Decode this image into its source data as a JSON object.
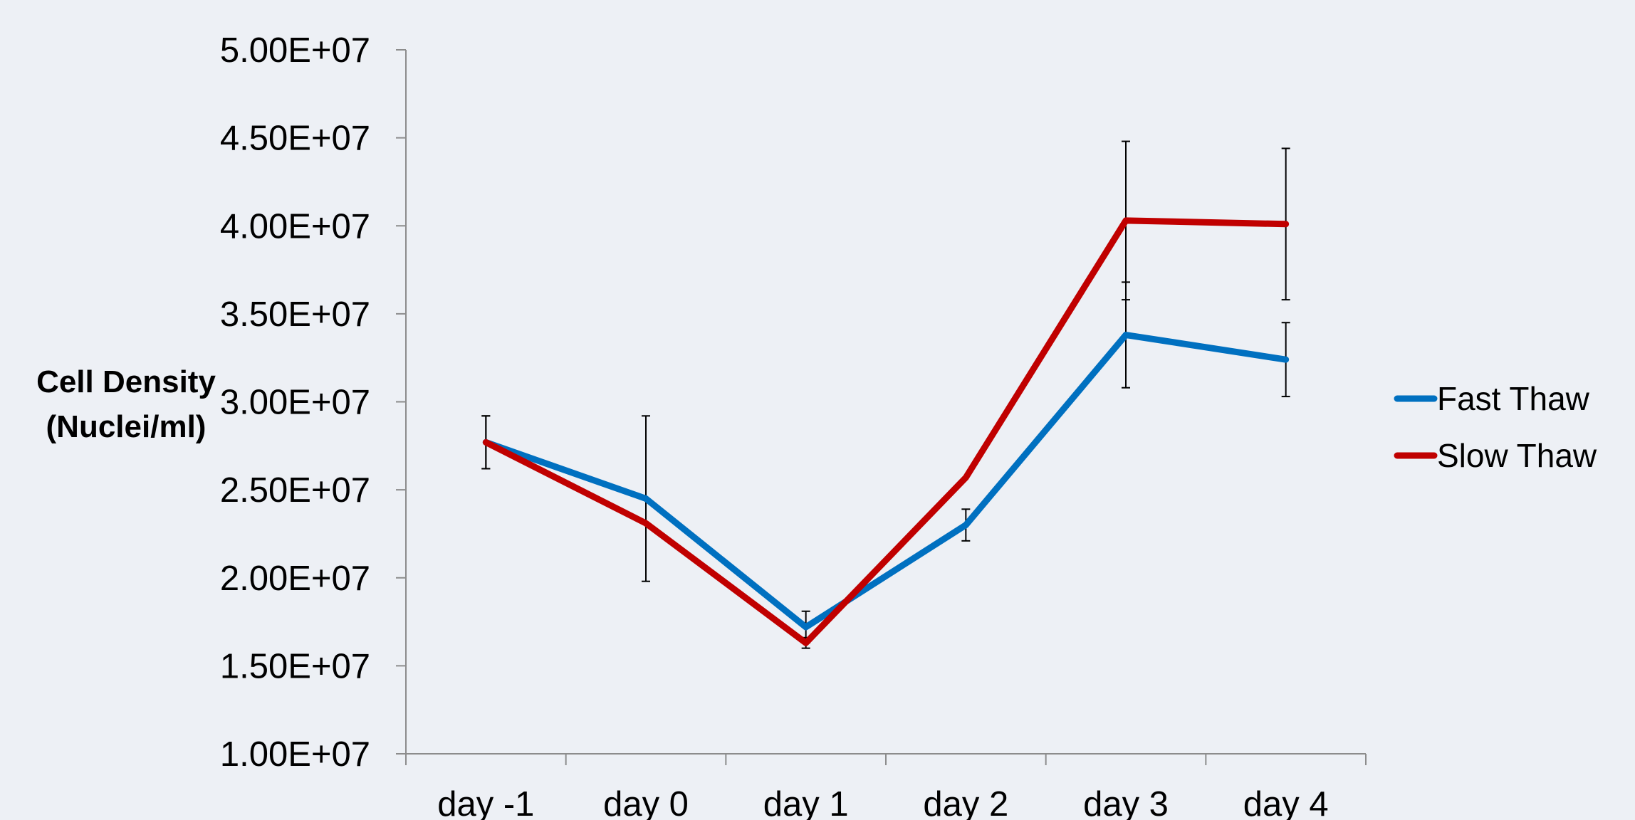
{
  "chart_data": {
    "type": "line",
    "title": "",
    "xlabel": "",
    "ylabel_lines": [
      "Cell Density",
      "(Nuclei/ml)"
    ],
    "categories": [
      "day -1",
      "day 0",
      "day 1",
      "day 2",
      "day 3",
      "day 4"
    ],
    "y_ticks": [
      "1.00E+07",
      "1.50E+07",
      "2.00E+07",
      "2.50E+07",
      "3.00E+07",
      "3.50E+07",
      "4.00E+07",
      "4.50E+07",
      "5.00E+07"
    ],
    "ylim": [
      10000000,
      50000000
    ],
    "y_tick_step": 5000000,
    "grid": false,
    "legend_position": "right",
    "series": [
      {
        "name": "Fast Thaw",
        "color": "#0070c0",
        "values": [
          27700000,
          24500000,
          17200000,
          23000000,
          33800000,
          32400000
        ],
        "error": [
          1500000,
          4700000,
          900000,
          900000,
          3000000,
          2100000
        ]
      },
      {
        "name": "Slow Thaw",
        "color": "#c00000",
        "values": [
          27700000,
          23100000,
          16300000,
          25700000,
          40300000,
          40100000
        ],
        "error": [
          1500000,
          0,
          300000,
          0,
          4500000,
          4300000
        ]
      }
    ]
  }
}
